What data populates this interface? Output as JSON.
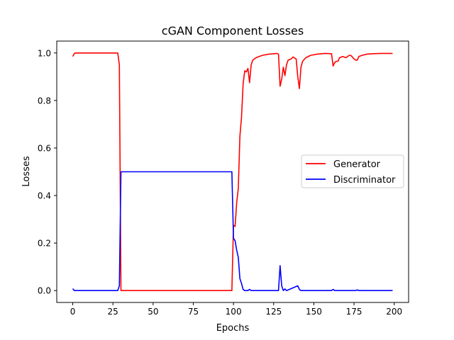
{
  "chart_data": {
    "type": "line",
    "title": "cGAN Component Losses",
    "xlabel": "Epochs",
    "ylabel": "Losses",
    "xlim": [
      -9.95,
      208.95
    ],
    "ylim": [
      -0.05,
      1.05
    ],
    "xticks": [
      0,
      25,
      50,
      75,
      100,
      125,
      150,
      175,
      200
    ],
    "xtick_labels": [
      "0",
      "25",
      "50",
      "75",
      "100",
      "125",
      "150",
      "175",
      "200"
    ],
    "yticks": [
      0.0,
      0.2,
      0.4,
      0.6,
      0.8,
      1.0
    ],
    "ytick_labels": [
      "0.0",
      "0.2",
      "0.4",
      "0.6",
      "0.8",
      "1.0"
    ],
    "grid": false,
    "legend_position": "center right",
    "series": [
      {
        "name": "Generator",
        "color": "#ff0000",
        "points": [
          [
            0,
            0.985
          ],
          [
            1,
            0.998
          ],
          [
            2,
            1.0
          ],
          [
            28,
            1.0
          ],
          [
            29,
            0.95
          ],
          [
            30,
            0.0
          ],
          [
            99,
            0.0
          ],
          [
            100,
            0.275
          ],
          [
            101,
            0.27
          ],
          [
            102,
            0.37
          ],
          [
            103,
            0.43
          ],
          [
            104,
            0.65
          ],
          [
            105,
            0.73
          ],
          [
            106,
            0.87
          ],
          [
            107,
            0.925
          ],
          [
            108,
            0.92
          ],
          [
            109,
            0.935
          ],
          [
            110,
            0.875
          ],
          [
            111,
            0.95
          ],
          [
            112,
            0.97
          ],
          [
            114,
            0.98
          ],
          [
            116,
            0.985
          ],
          [
            118,
            0.99
          ],
          [
            122,
            0.995
          ],
          [
            127,
            0.998
          ],
          [
            128,
            0.995
          ],
          [
            129,
            0.86
          ],
          [
            130,
            0.89
          ],
          [
            131,
            0.94
          ],
          [
            132,
            0.905
          ],
          [
            133,
            0.95
          ],
          [
            134,
            0.97
          ],
          [
            136,
            0.975
          ],
          [
            137,
            0.983
          ],
          [
            139,
            0.975
          ],
          [
            140,
            0.9
          ],
          [
            141,
            0.85
          ],
          [
            142,
            0.94
          ],
          [
            143,
            0.965
          ],
          [
            145,
            0.98
          ],
          [
            148,
            0.99
          ],
          [
            152,
            0.995
          ],
          [
            157,
            0.998
          ],
          [
            161,
            0.997
          ],
          [
            162,
            0.945
          ],
          [
            163,
            0.96
          ],
          [
            164,
            0.965
          ],
          [
            165,
            0.965
          ],
          [
            166,
            0.98
          ],
          [
            168,
            0.985
          ],
          [
            170,
            0.98
          ],
          [
            172,
            0.99
          ],
          [
            173,
            0.99
          ],
          [
            175,
            0.975
          ],
          [
            176,
            0.97
          ],
          [
            177,
            0.97
          ],
          [
            178,
            0.985
          ],
          [
            180,
            0.99
          ],
          [
            183,
            0.995
          ],
          [
            187,
            0.997
          ],
          [
            192,
            0.998
          ],
          [
            199,
            0.998
          ]
        ]
      },
      {
        "name": "Discriminator",
        "color": "#0000ff",
        "points": [
          [
            0,
            0.008
          ],
          [
            1,
            0.0
          ],
          [
            28,
            0.0
          ],
          [
            29,
            0.02
          ],
          [
            30,
            0.5
          ],
          [
            99,
            0.5
          ],
          [
            100,
            0.22
          ],
          [
            101,
            0.21
          ],
          [
            102,
            0.17
          ],
          [
            103,
            0.14
          ],
          [
            104,
            0.05
          ],
          [
            105,
            0.03
          ],
          [
            106,
            0.005
          ],
          [
            107,
            0.0
          ],
          [
            109,
            0.0
          ],
          [
            110,
            0.005
          ],
          [
            111,
            0.0
          ],
          [
            128,
            0.0
          ],
          [
            129,
            0.105
          ],
          [
            130,
            0.02
          ],
          [
            131,
            0.0
          ],
          [
            132,
            0.007
          ],
          [
            133,
            0.0
          ],
          [
            140,
            0.02
          ],
          [
            141,
            0.005
          ],
          [
            142,
            0.0
          ],
          [
            161,
            0.0
          ],
          [
            162,
            0.005
          ],
          [
            163,
            0.0
          ],
          [
            176,
            0.0
          ],
          [
            177,
            0.003
          ],
          [
            178,
            0.0
          ],
          [
            199,
            0.0
          ]
        ]
      }
    ]
  }
}
